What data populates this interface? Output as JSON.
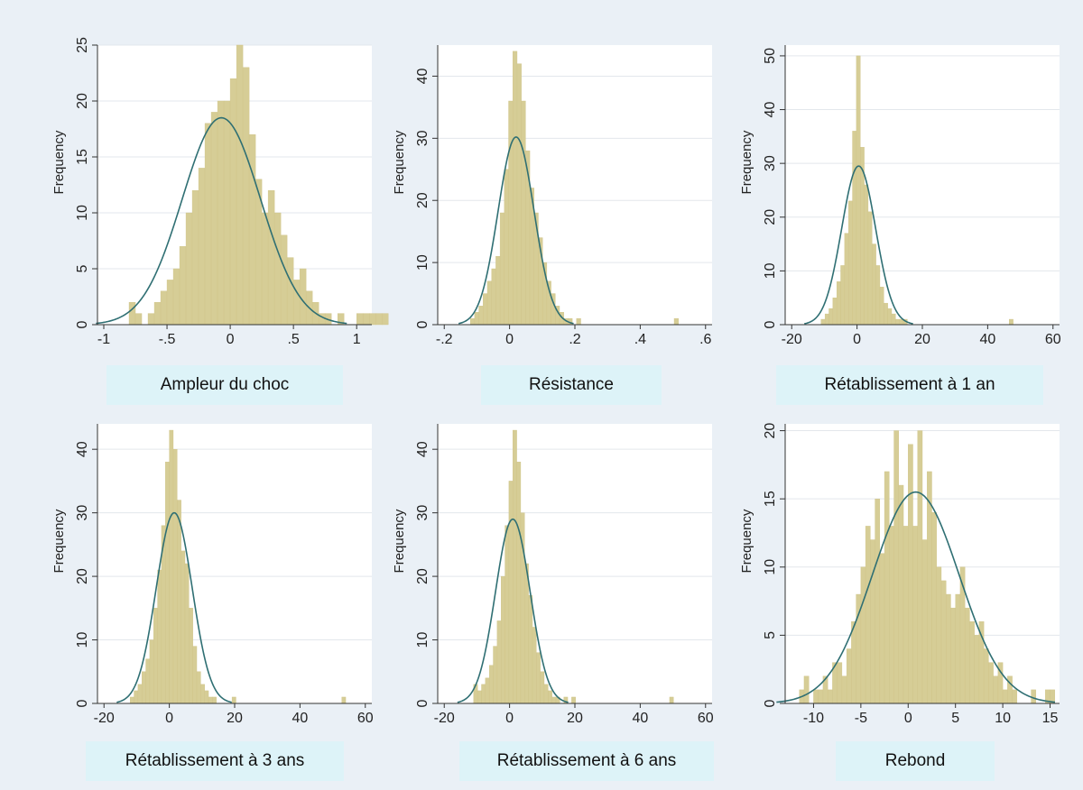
{
  "chart_data": [
    {
      "type": "histogram",
      "caption": "Ampleur du choc",
      "ylabel": "Frequency",
      "xlim": [
        -1.05,
        1.12
      ],
      "ylim": [
        0,
        25
      ],
      "xticks": [
        -1,
        -0.5,
        0,
        0.5,
        1
      ],
      "xtick_labels": [
        "-1",
        "-.5",
        "0",
        ".5",
        "1"
      ],
      "yticks": [
        0,
        5,
        10,
        15,
        20,
        25
      ],
      "bin_start": -0.8,
      "bin_width": 0.05,
      "frequencies": [
        2,
        1,
        0,
        1,
        2,
        3,
        4,
        5,
        7,
        10,
        12,
        14,
        18,
        19,
        20,
        20,
        22,
        25,
        23,
        17,
        13,
        10,
        12,
        10,
        8,
        6,
        4,
        5,
        3,
        2,
        1,
        1,
        0,
        1,
        0,
        0,
        1,
        1,
        1,
        1,
        1
      ],
      "normal_curve": {
        "mean": -0.07,
        "sd": 0.31,
        "peak": 18.5
      }
    },
    {
      "type": "histogram",
      "caption": "Résistance",
      "ylabel": "Frequency",
      "xlim": [
        -0.22,
        0.62
      ],
      "ylim": [
        0,
        45
      ],
      "xticks": [
        -0.2,
        0,
        0.2,
        0.4,
        0.6
      ],
      "xtick_labels": [
        "-.2",
        "0",
        ".2",
        ".4",
        ".6"
      ],
      "yticks": [
        0,
        10,
        20,
        30,
        40
      ],
      "bin_start": -0.12,
      "bin_width": 0.013,
      "frequencies": [
        1,
        2,
        3,
        5,
        7,
        9,
        11,
        18,
        25,
        36,
        44,
        42,
        36,
        28,
        22,
        18,
        14,
        10,
        7,
        5,
        3,
        2,
        1,
        1,
        0,
        1,
        0,
        0,
        0,
        0,
        0,
        0,
        0,
        0,
        0,
        0,
        0,
        0,
        0,
        0,
        0,
        0,
        0,
        0,
        0,
        0,
        0,
        0,
        1
      ],
      "normal_curve": {
        "mean": 0.02,
        "sd": 0.055,
        "peak": 30.2
      }
    },
    {
      "type": "histogram",
      "caption": "Rétablissement à 1 an",
      "ylabel": "Frequency",
      "xlim": [
        -22,
        62
      ],
      "ylim": [
        0,
        52
      ],
      "xticks": [
        -20,
        0,
        20,
        40,
        60
      ],
      "xtick_labels": [
        "-20",
        "0",
        "20",
        "40",
        "60"
      ],
      "yticks": [
        0,
        10,
        20,
        30,
        40,
        50
      ],
      "bin_start": -11,
      "bin_width": 1.2,
      "frequencies": [
        1,
        2,
        3,
        5,
        8,
        11,
        17,
        23,
        36,
        50,
        33,
        26,
        21,
        15,
        11,
        7,
        4,
        3,
        2,
        1,
        1,
        1,
        0,
        0,
        0,
        0,
        0,
        0,
        0,
        0,
        0,
        0,
        0,
        0,
        0,
        0,
        0,
        0,
        0,
        0,
        0,
        0,
        0,
        0,
        0,
        0,
        0,
        0,
        1
      ],
      "normal_curve": {
        "mean": 0.5,
        "sd": 5.2,
        "peak": 29.5
      }
    },
    {
      "type": "histogram",
      "caption": "Rétablissement à 3 ans",
      "ylabel": "Frequency",
      "xlim": [
        -22,
        62
      ],
      "ylim": [
        0,
        44
      ],
      "xticks": [
        -20,
        0,
        20,
        40,
        60
      ],
      "xtick_labels": [
        "-20",
        "0",
        "20",
        "40",
        "60"
      ],
      "yticks": [
        0,
        10,
        20,
        30,
        40
      ],
      "bin_start": -12,
      "bin_width": 1.2,
      "frequencies": [
        1,
        2,
        3,
        5,
        7,
        10,
        15,
        21,
        28,
        38,
        43,
        40,
        32,
        24,
        22,
        15,
        9,
        5,
        3,
        2,
        1,
        1,
        0,
        0,
        0,
        0,
        1,
        0,
        0,
        0,
        0,
        0,
        0,
        0,
        0,
        0,
        0,
        0,
        0,
        0,
        0,
        0,
        0,
        0,
        0,
        0,
        0,
        0,
        0,
        0,
        0,
        0,
        0,
        0,
        1
      ],
      "normal_curve": {
        "mean": 1.5,
        "sd": 5.5,
        "peak": 30
      }
    },
    {
      "type": "histogram",
      "caption": "Rétablissement à 6 ans",
      "ylabel": "Frequency",
      "xlim": [
        -22,
        62
      ],
      "ylim": [
        0,
        44
      ],
      "xticks": [
        -20,
        0,
        20,
        40,
        60
      ],
      "xtick_labels": [
        "-20",
        "0",
        "20",
        "40",
        "60"
      ],
      "yticks": [
        0,
        10,
        20,
        30,
        40
      ],
      "bin_start": -11,
      "bin_width": 1.2,
      "frequencies": [
        3,
        2,
        3,
        4,
        6,
        9,
        13,
        20,
        28,
        35,
        43,
        38,
        30,
        22,
        17,
        12,
        8,
        5,
        3,
        2,
        1,
        1,
        0,
        1,
        0,
        1,
        0,
        0,
        0,
        0,
        0,
        0,
        0,
        0,
        0,
        0,
        0,
        0,
        0,
        0,
        0,
        0,
        0,
        0,
        0,
        0,
        0,
        0,
        0,
        0,
        1
      ],
      "normal_curve": {
        "mean": 1,
        "sd": 5.3,
        "peak": 29
      }
    },
    {
      "type": "histogram",
      "caption": "Rebond",
      "ylabel": "Frequency",
      "xlim": [
        -13,
        16
      ],
      "ylim": [
        0,
        20.5
      ],
      "xticks": [
        -10,
        -5,
        0,
        5,
        10,
        15
      ],
      "xtick_labels": [
        "-10",
        "-5",
        "0",
        "5",
        "10",
        "15"
      ],
      "yticks": [
        0,
        5,
        10,
        15,
        20
      ],
      "bin_start": -11.5,
      "bin_width": 0.5,
      "frequencies": [
        1,
        2,
        0,
        1,
        1,
        2,
        1,
        3,
        3,
        2,
        4,
        6,
        8,
        10,
        13,
        12,
        15,
        11,
        17,
        13,
        20,
        16,
        13,
        19,
        13,
        20,
        12,
        17,
        14,
        10,
        9,
        8,
        7,
        8,
        10,
        7,
        6,
        5,
        6,
        4,
        3,
        2,
        3,
        1,
        2,
        1,
        0,
        0,
        0,
        1,
        0,
        0,
        1,
        1
      ],
      "normal_curve": {
        "mean": 0.8,
        "sd": 4.6,
        "peak": 15.5
      }
    }
  ]
}
